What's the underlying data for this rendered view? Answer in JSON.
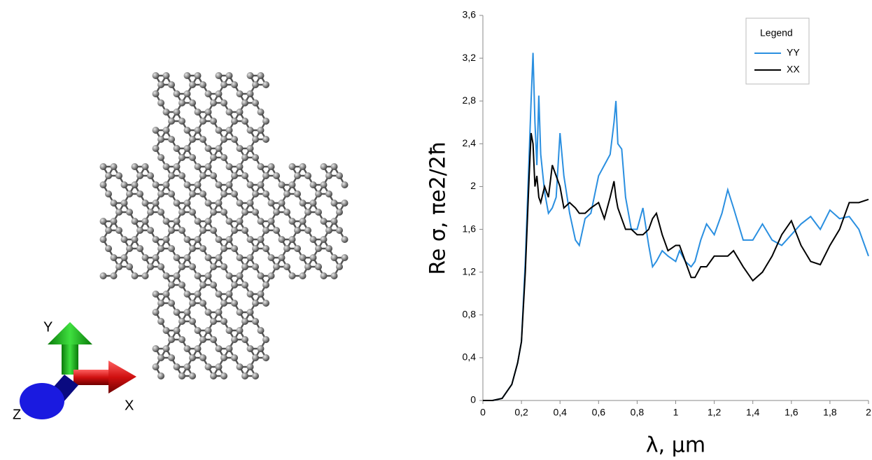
{
  "axis_triad": {
    "labels": [
      "Y",
      "X",
      "Z"
    ]
  },
  "chart_data": {
    "type": "line",
    "ylabel": "Re σ, πe2/2ħ",
    "xlabel": "λ, μm",
    "legend_title": "Legend",
    "legend": "upper right",
    "grid": false,
    "xlim": [
      0,
      2
    ],
    "ylim": [
      0,
      3.6
    ],
    "xticks": [
      0,
      {
        "value": 0.2,
        "label": "0,2"
      },
      {
        "value": 0.4,
        "label": "0,4"
      },
      {
        "value": 0.6,
        "label": "0,6"
      },
      {
        "value": 0.8,
        "label": "0,8"
      },
      1,
      {
        "value": 1.2,
        "label": "1,2"
      },
      {
        "value": 1.4,
        "label": "1,4"
      },
      {
        "value": 1.6,
        "label": "1,6"
      },
      {
        "value": 1.8,
        "label": "1,8"
      },
      2
    ],
    "yticks": [
      0,
      {
        "value": 0.4,
        "label": "0,4"
      },
      {
        "value": 0.8,
        "label": "0,8"
      },
      {
        "value": 1.2,
        "label": "1,2"
      },
      {
        "value": 1.6,
        "label": "1,6"
      },
      2,
      {
        "value": 2.4,
        "label": "2,4"
      },
      {
        "value": 2.8,
        "label": "2,8"
      },
      {
        "value": 3.2,
        "label": "3,2"
      },
      {
        "value": 3.6,
        "label": "3,6"
      }
    ],
    "x": [
      0,
      0.05,
      0.1,
      0.15,
      0.18,
      0.2,
      0.22,
      0.24,
      0.25,
      0.26,
      0.27,
      0.28,
      0.29,
      0.3,
      0.32,
      0.34,
      0.36,
      0.38,
      0.4,
      0.42,
      0.45,
      0.48,
      0.5,
      0.53,
      0.56,
      0.6,
      0.63,
      0.66,
      0.68,
      0.69,
      0.7,
      0.72,
      0.74,
      0.77,
      0.8,
      0.83,
      0.86,
      0.88,
      0.9,
      0.93,
      0.96,
      1,
      1.02,
      1.05,
      1.08,
      1.1,
      1.13,
      1.16,
      1.2,
      1.24,
      1.27,
      1.3,
      1.35,
      1.4,
      1.45,
      1.5,
      1.55,
      1.6,
      1.65,
      1.7,
      1.75,
      1.8,
      1.85,
      1.9,
      1.95,
      2
    ],
    "series": [
      {
        "name": "YY",
        "color": "#2a8fe0",
        "values": [
          0,
          0,
          0.02,
          0.15,
          0.35,
          0.55,
          1.3,
          2.3,
          2.8,
          3.25,
          2.6,
          2.2,
          2.85,
          2.3,
          1.95,
          1.75,
          1.8,
          1.9,
          2.5,
          2.1,
          1.75,
          1.5,
          1.45,
          1.7,
          1.75,
          2.1,
          2.2,
          2.3,
          2.6,
          2.8,
          2.4,
          2.35,
          1.9,
          1.6,
          1.6,
          1.8,
          1.45,
          1.25,
          1.3,
          1.4,
          1.35,
          1.3,
          1.4,
          1.3,
          1.25,
          1.3,
          1.5,
          1.65,
          1.55,
          1.75,
          1.97,
          1.8,
          1.5,
          1.5,
          1.65,
          1.5,
          1.45,
          1.55,
          1.65,
          1.72,
          1.6,
          1.78,
          1.7,
          1.72,
          1.6,
          1.35
        ]
      },
      {
        "name": "XX",
        "color": "#000000",
        "values": [
          0,
          0,
          0.02,
          0.15,
          0.35,
          0.55,
          1.2,
          2.1,
          2.5,
          2.4,
          2.0,
          2.1,
          1.9,
          1.85,
          2.0,
          1.9,
          2.2,
          2.1,
          2.0,
          1.8,
          1.85,
          1.8,
          1.75,
          1.75,
          1.8,
          1.85,
          1.7,
          1.9,
          2.05,
          1.9,
          1.8,
          1.7,
          1.6,
          1.6,
          1.55,
          1.55,
          1.6,
          1.7,
          1.75,
          1.55,
          1.4,
          1.45,
          1.45,
          1.3,
          1.15,
          1.15,
          1.25,
          1.25,
          1.35,
          1.35,
          1.35,
          1.4,
          1.25,
          1.12,
          1.2,
          1.35,
          1.55,
          1.68,
          1.45,
          1.3,
          1.27,
          1.45,
          1.6,
          1.85,
          1.85,
          1.88
        ]
      }
    ]
  }
}
